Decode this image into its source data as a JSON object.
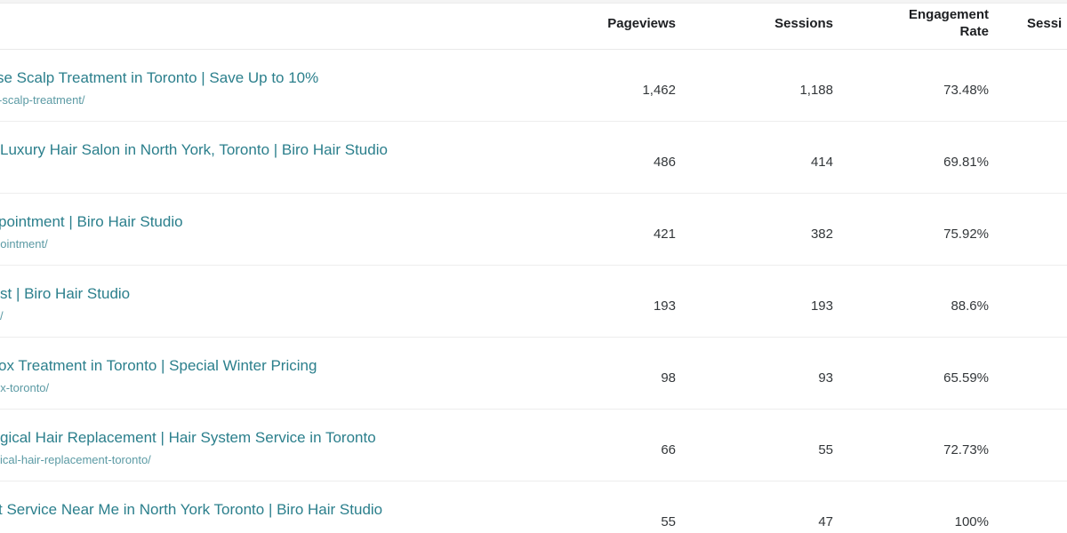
{
  "table": {
    "columns": [
      {
        "id": "pageviews",
        "label": "Pageviews"
      },
      {
        "id": "sessions",
        "label": "Sessions"
      },
      {
        "id": "engagement_rate",
        "label": "Engagement Rate"
      },
      {
        "id": "sessions_clipped",
        "label": "Sessi"
      }
    ],
    "rows": [
      {
        "title": "se Scalp Treatment in Toronto | Save Up to 10%",
        "url": "-scalp-treatment/",
        "pageviews": "1,462",
        "sessions": "1,188",
        "engagement_rate": "73.48%"
      },
      {
        "title": "Luxury Hair Salon in North York, Toronto | Biro Hair Studio",
        "url": "",
        "pageviews": "486",
        "sessions": "414",
        "engagement_rate": "69.81%"
      },
      {
        "title": "pointment | Biro Hair Studio",
        "url": "pointment/",
        "pageviews": "421",
        "sessions": "382",
        "engagement_rate": "75.92%"
      },
      {
        "title": "st | Biro Hair Studio",
        "url": "/",
        "pageviews": "193",
        "sessions": "193",
        "engagement_rate": "88.6%"
      },
      {
        "title": "ox Treatment in Toronto | Special Winter Pricing",
        "url": "ox-toronto/",
        "pageviews": "98",
        "sessions": "93",
        "engagement_rate": "65.59%"
      },
      {
        "title": "gical Hair Replacement | Hair System Service in Toronto",
        "url": "ical-hair-replacement-toronto/",
        "pageviews": "66",
        "sessions": "55",
        "engagement_rate": "72.73%"
      },
      {
        "title": "t Service Near Me in North York Toronto | Biro Hair Studio",
        "url": "",
        "pageviews": "55",
        "sessions": "47",
        "engagement_rate": "100%"
      }
    ]
  },
  "colors": {
    "link_teal": "#2b7f8c",
    "url_teal": "#5b9aa4",
    "header_text": "#1c1e21",
    "value_text": "#33373a",
    "separator": "#ededed"
  }
}
